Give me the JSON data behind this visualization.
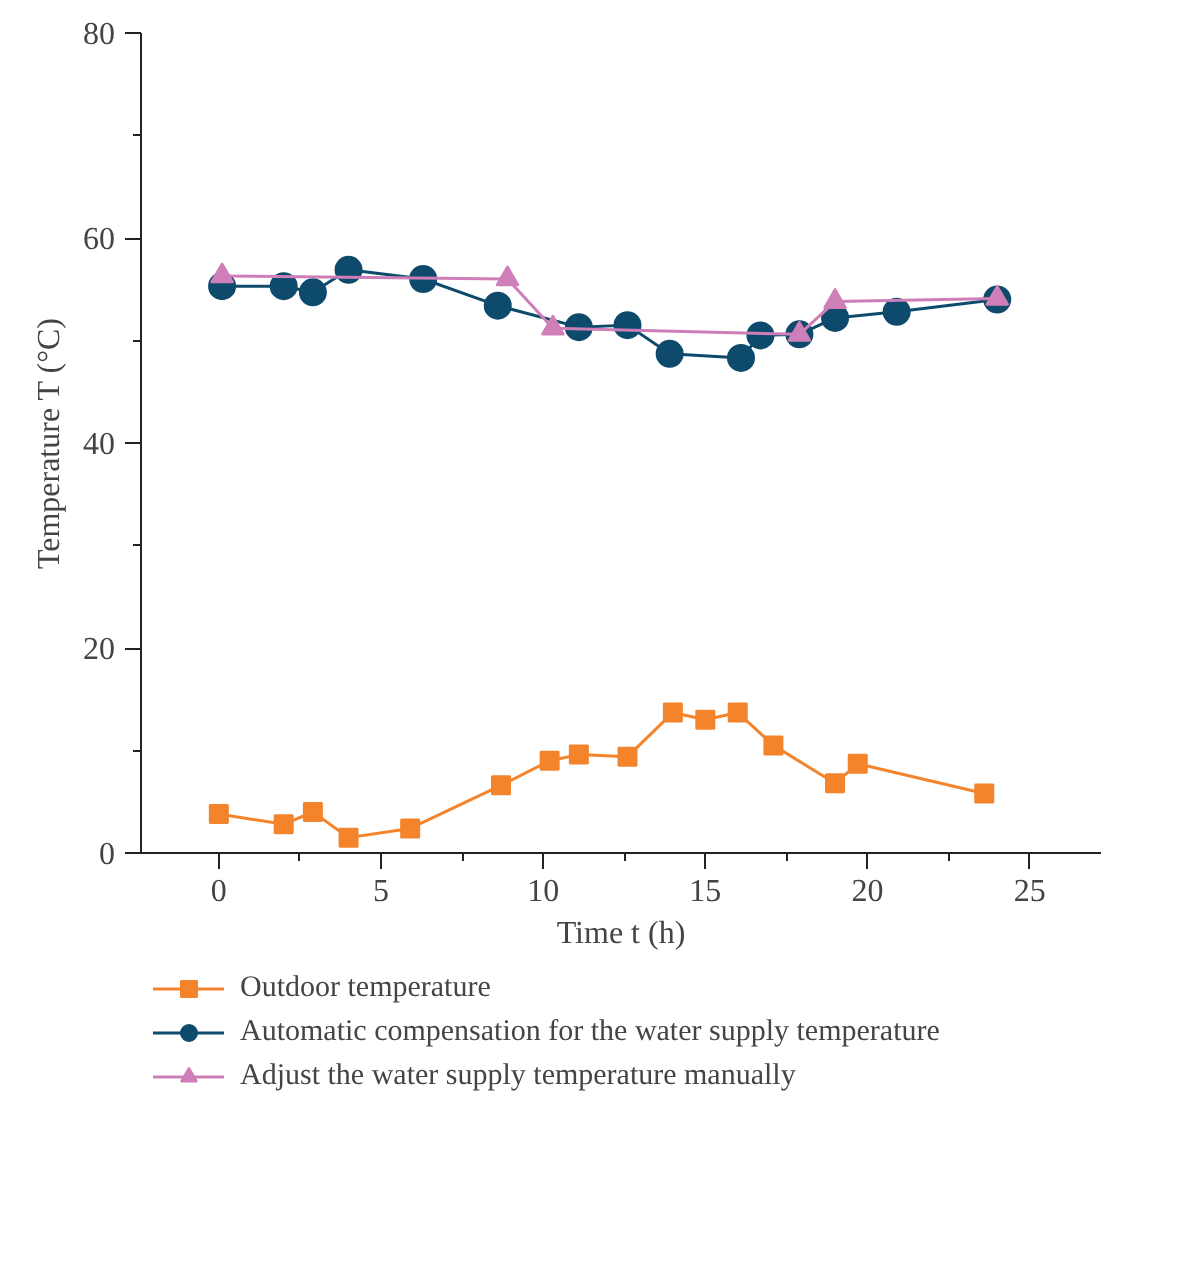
{
  "chart_data": {
    "type": "line",
    "xlabel": "Time t (h)",
    "ylabel": "Temperature T (°C)",
    "xlim": [
      -2.4,
      27.2
    ],
    "xticks": [
      0,
      5,
      10,
      15,
      20,
      25
    ],
    "ylim": [
      0,
      80
    ],
    "yticks": [
      0,
      20,
      40,
      60,
      80
    ],
    "grid": false,
    "legend": "bottom",
    "line_style": "solid",
    "series": [
      {
        "name": "Outdoor temperature",
        "color": "#f4842c",
        "marker": "square",
        "x": [
          0.0,
          2.0,
          2.9,
          4.0,
          5.9,
          8.7,
          10.2,
          11.1,
          12.6,
          14.0,
          15.0,
          16.0,
          17.1,
          19.0,
          19.7,
          23.6
        ],
        "values": [
          3.8,
          2.8,
          4.0,
          1.5,
          2.4,
          6.6,
          9.0,
          9.6,
          9.4,
          13.7,
          13.0,
          13.7,
          10.5,
          6.8,
          8.7,
          5.8
        ]
      },
      {
        "name": "Automatic compensation for the water supply temperature",
        "color": "#0e4a6c",
        "marker": "circle",
        "x": [
          0.1,
          2.0,
          2.9,
          4.0,
          6.3,
          8.6,
          11.1,
          12.6,
          13.9,
          16.1,
          16.7,
          17.9,
          19.0,
          20.9,
          24.0
        ],
        "values": [
          55.3,
          55.3,
          54.7,
          56.9,
          56.0,
          53.4,
          51.3,
          51.5,
          48.7,
          48.3,
          50.5,
          50.6,
          52.2,
          52.8,
          54.0
        ]
      },
      {
        "name": "Adjust the water supply temperature manually",
        "color": "#cf7fb8",
        "marker": "triangle",
        "x": [
          0.1,
          8.9,
          10.3,
          17.9,
          19.0,
          24.0
        ],
        "values": [
          56.3,
          56.0,
          51.2,
          50.6,
          53.8,
          54.1
        ]
      }
    ]
  }
}
